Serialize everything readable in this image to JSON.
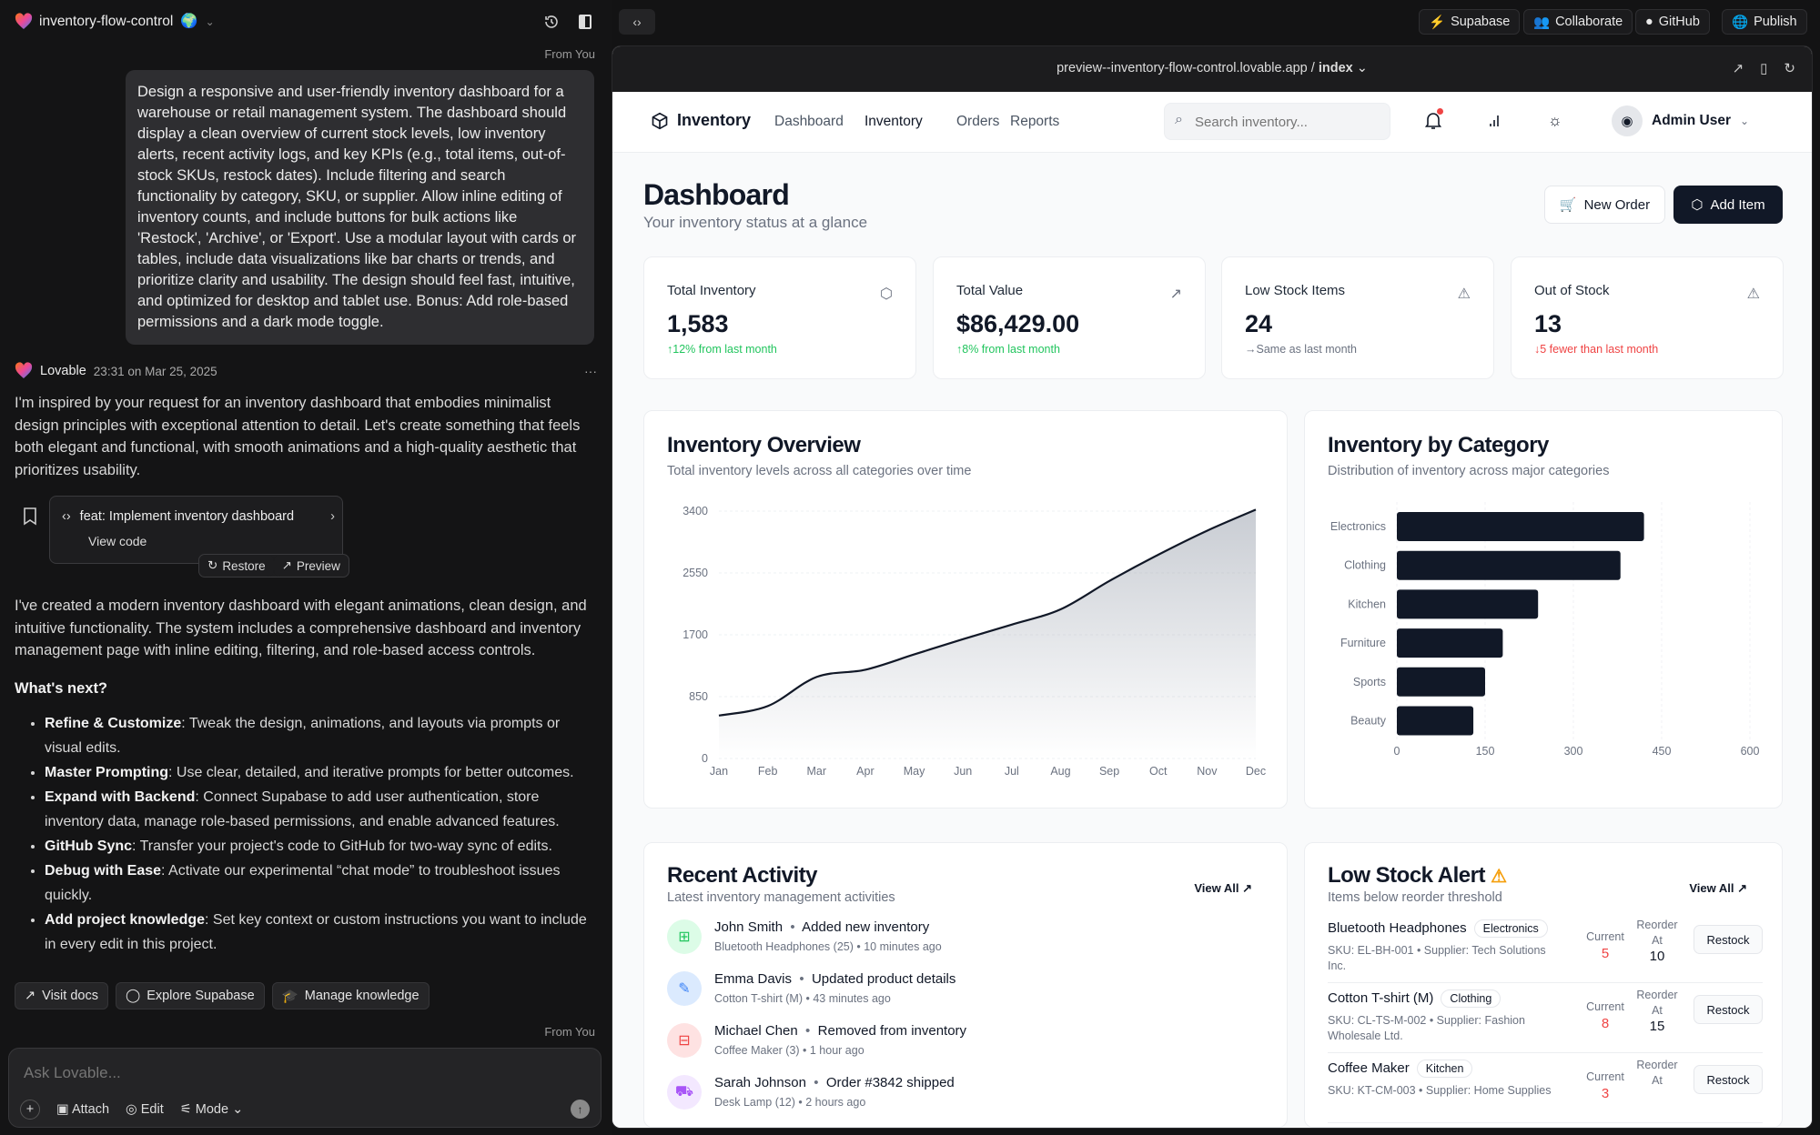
{
  "project": {
    "name": "inventory-flow-control"
  },
  "chat": {
    "from_you": "From You",
    "user_prompt": "Design a responsive and user-friendly inventory dashboard for a warehouse or retail management system. The dashboard should display a clean overview of current stock levels, low inventory alerts, recent activity logs, and key KPIs (e.g., total items, out-of-stock SKUs, restock dates). Include filtering and search functionality by category, SKU, or supplier. Allow inline editing of inventory counts, and include buttons for bulk actions like 'Restock', 'Archive', or 'Export'. Use a modular layout with cards or tables, include data visualizations like bar charts or trends, and prioritize clarity and usability. The design should feel fast, intuitive, and optimized for desktop and tablet use. Bonus: Add role-based permissions and a dark mode toggle.",
    "assistant_name": "Lovable",
    "timestamp": "23:31 on Mar 25, 2025",
    "more": "···",
    "intro": "I'm inspired by your request for an inventory dashboard that embodies minimalist design principles with exceptional attention to detail. Let's create something that feels both elegant and functional, with smooth animations and a high-quality aesthetic that prioritizes usability.",
    "commit": {
      "title": "feat: Implement inventory dashboard",
      "view_code": "View code",
      "restore": "Restore",
      "preview": "Preview"
    },
    "summary": "I've created a modern inventory dashboard with elegant animations, clean design, and intuitive functionality. The system includes a comprehensive dashboard and inventory management page with inline editing, filtering, and role-based access controls.",
    "whats_next": "What's next?",
    "bullets": [
      {
        "title": "Refine & Customize",
        "text": ": Tweak the design, animations, and layouts via prompts or visual edits."
      },
      {
        "title": "Master Prompting",
        "text": ": Use clear, detailed, and iterative prompts for better outcomes."
      },
      {
        "title": "Expand with Backend",
        "text": ": Connect Supabase to add user authentication, store inventory data, manage role-based permissions, and enable advanced features."
      },
      {
        "title": "GitHub Sync",
        "text": ": Transfer your project's code to GitHub for two-way sync of edits."
      },
      {
        "title": "Debug with Ease",
        "text": ": Activate our experimental “chat mode” to troubleshoot issues quickly."
      },
      {
        "title": "Add project knowledge",
        "text": ": Set key context or custom instructions you want to include in every edit in this project."
      }
    ],
    "actions": [
      "Visit docs",
      "Explore Supabase",
      "Manage knowledge"
    ],
    "input_placeholder": "Ask Lovable...",
    "input_tools": {
      "attach": "Attach",
      "edit": "Edit",
      "mode": "Mode"
    }
  },
  "topbar": {
    "supabase": "Supabase",
    "collaborate": "Collaborate",
    "github": "GitHub",
    "publish": "Publish"
  },
  "preview": {
    "url": "preview--inventory-flow-control.lovable.app / ",
    "page": "index"
  },
  "app": {
    "brand": "Inventory",
    "nav": [
      "Dashboard",
      "Inventory",
      "Orders",
      "Reports"
    ],
    "search_placeholder": "Search inventory...",
    "user": "Admin User",
    "title": "Dashboard",
    "subtitle": "Your inventory status at a glance",
    "new_order": "New Order",
    "add_item": "Add Item",
    "kpis": [
      {
        "label": "Total Inventory",
        "value": "1,583",
        "change": "↑12% from last month",
        "tone": "#22c55e",
        "icon": "package-icon"
      },
      {
        "label": "Total Value",
        "value": "$86,429.00",
        "change": "↑8% from last month",
        "tone": "#22c55e",
        "icon": "trending-up-icon"
      },
      {
        "label": "Low Stock Items",
        "value": "24",
        "change": "→Same as last month",
        "tone": "#6b7280",
        "icon": "alert-triangle-icon"
      },
      {
        "label": "Out of Stock",
        "value": "13",
        "change": "↓5 fewer than last month",
        "tone": "#ef4444",
        "icon": "alert-triangle-icon"
      }
    ],
    "overview": {
      "title": "Inventory Overview",
      "subtitle": "Total inventory levels across all categories over time"
    },
    "category": {
      "title": "Inventory by Category",
      "subtitle": "Distribution of inventory across major categories"
    },
    "activity": {
      "title": "Recent Activity",
      "subtitle": "Latest inventory management activities",
      "view_all": "View All",
      "items": [
        {
          "user": "John Smith",
          "action": "Added new inventory",
          "detail": "Bluetooth Headphones (25) • 10 minutes ago",
          "color": "#22c55e",
          "bg": "#dcfce7",
          "icon": "package-plus-icon"
        },
        {
          "user": "Emma Davis",
          "action": "Updated product details",
          "detail": "Cotton T-shirt (M) • 43 minutes ago",
          "color": "#3b82f6",
          "bg": "#dbeafe",
          "icon": "edit-icon"
        },
        {
          "user": "Michael Chen",
          "action": "Removed from inventory",
          "detail": "Coffee Maker (3) • 1 hour ago",
          "color": "#ef4444",
          "bg": "#fee2e2",
          "icon": "package-minus-icon"
        },
        {
          "user": "Sarah Johnson",
          "action": "Order #3842 shipped",
          "detail": "Desk Lamp (12) • 2 hours ago",
          "color": "#a855f7",
          "bg": "#f3e8ff",
          "icon": "truck-icon"
        }
      ]
    },
    "low_stock": {
      "title": "Low Stock Alert",
      "subtitle": "Items below reorder threshold",
      "view_all": "View All",
      "current_label": "Current",
      "reorder_label": "Reorder At",
      "restock": "Restock",
      "items": [
        {
          "name": "Bluetooth Headphones",
          "category": "Electronics",
          "meta": "SKU: EL-BH-001 • Supplier: Tech Solutions Inc.",
          "current": "5",
          "reorder": "10"
        },
        {
          "name": "Cotton T-shirt (M)",
          "category": "Clothing",
          "meta": "SKU: CL-TS-M-002 • Supplier: Fashion Wholesale Ltd.",
          "current": "8",
          "reorder": "15"
        },
        {
          "name": "Coffee Maker",
          "category": "Kitchen",
          "meta": "SKU: KT-CM-003 • Supplier: Home Supplies",
          "current": "3",
          "reorder": ""
        }
      ]
    }
  },
  "chart_data": [
    {
      "type": "area",
      "x": [
        "Jan",
        "Feb",
        "Mar",
        "Apr",
        "May",
        "Jun",
        "Jul",
        "Aug",
        "Sep",
        "Oct",
        "Nov",
        "Dec"
      ],
      "values": [
        590,
        720,
        1120,
        1220,
        1430,
        1640,
        1840,
        2050,
        2440,
        2800,
        3130,
        3420
      ],
      "yticks": [
        0,
        850,
        1700,
        2550,
        3400
      ],
      "ylim": [
        0,
        3400
      ],
      "grid": true,
      "color": "#111827"
    },
    {
      "type": "bar",
      "orientation": "horizontal",
      "categories": [
        "Electronics",
        "Clothing",
        "Kitchen",
        "Furniture",
        "Sports",
        "Beauty"
      ],
      "values": [
        420,
        380,
        240,
        180,
        150,
        130
      ],
      "xticks": [
        0,
        150,
        300,
        450,
        600
      ],
      "xlim": [
        0,
        600
      ],
      "grid": true,
      "color": "#111827"
    }
  ]
}
